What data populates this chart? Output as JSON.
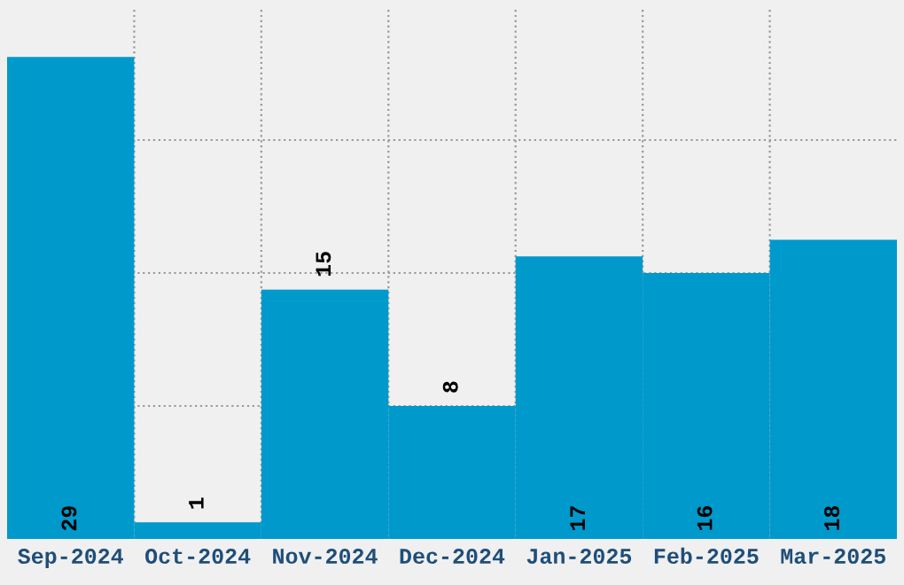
{
  "chart_data": {
    "type": "bar",
    "categories": [
      "Sep-2024",
      "Oct-2024",
      "Nov-2024",
      "Dec-2024",
      "Jan-2025",
      "Feb-2025",
      "Mar-2025"
    ],
    "values": [
      29,
      1,
      15,
      8,
      17,
      16,
      18
    ],
    "color": "#0099cc",
    "ylim": [
      0,
      32
    ],
    "yticks": [
      {
        "value": 8,
        "label": null
      },
      {
        "value": 16,
        "label": null
      },
      {
        "value": 24,
        "label": null
      }
    ],
    "tick_labels": "x",
    "grid": true,
    "data_labels": true
  }
}
